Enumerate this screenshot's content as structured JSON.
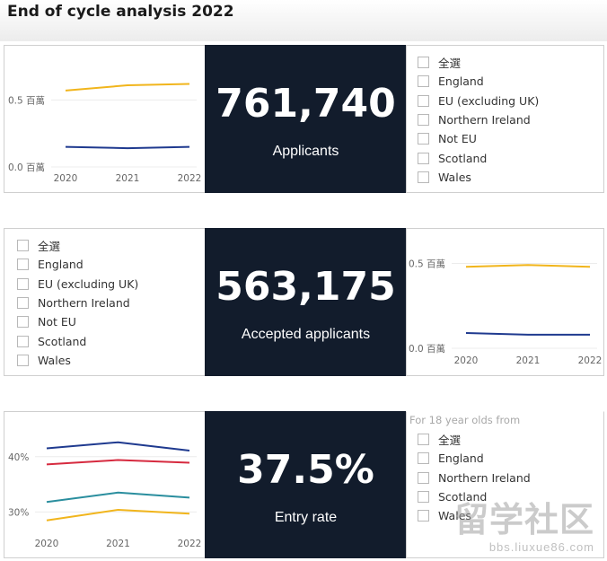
{
  "page": {
    "title": "End of cycle analysis 2022"
  },
  "chart_data": [
    {
      "type": "line",
      "title": "Applicants",
      "x": [
        2020,
        2021,
        2022
      ],
      "series": [
        {
          "name": "upper",
          "color": "#f1b51c",
          "values": [
            0.57,
            0.61,
            0.62
          ]
        },
        {
          "name": "lower",
          "color": "#1f3a8f",
          "values": [
            0.15,
            0.14,
            0.15
          ]
        }
      ],
      "yticks": [
        {
          "value": 0.0,
          "label": "0.0 百萬"
        },
        {
          "value": 0.5,
          "label": "0.5 百萬"
        }
      ],
      "ylim": [
        0,
        0.65
      ]
    },
    {
      "type": "line",
      "title": "Accepted applicants",
      "x": [
        2020,
        2021,
        2022
      ],
      "series": [
        {
          "name": "upper",
          "color": "#f1b51c",
          "values": [
            0.48,
            0.49,
            0.48
          ]
        },
        {
          "name": "lower",
          "color": "#1f3a8f",
          "values": [
            0.09,
            0.08,
            0.08
          ]
        }
      ],
      "yticks": [
        {
          "value": 0.0,
          "label": "0.0 百萬"
        },
        {
          "value": 0.5,
          "label": "0.5 百萬"
        }
      ],
      "ylim": [
        0,
        0.55
      ]
    },
    {
      "type": "line",
      "title": "Entry rate",
      "x": [
        2020,
        2021,
        2022
      ],
      "series": [
        {
          "name": "navy",
          "color": "#1f3a8f",
          "values": [
            41.5,
            42.6,
            41.1
          ]
        },
        {
          "name": "red",
          "color": "#d62a3f",
          "values": [
            38.6,
            39.4,
            38.9
          ]
        },
        {
          "name": "teal",
          "color": "#2a8e9e",
          "values": [
            31.8,
            33.5,
            32.6
          ]
        },
        {
          "name": "yellow",
          "color": "#f1b51c",
          "values": [
            28.5,
            30.4,
            29.7
          ]
        }
      ],
      "yticks": [
        {
          "value": 30,
          "label": "30%"
        },
        {
          "value": 40,
          "label": "40%"
        }
      ],
      "ylim": [
        26.5,
        44.5
      ]
    }
  ],
  "cards": [
    {
      "value": "761,740",
      "label": "Applicants"
    },
    {
      "value": "563,175",
      "label": "Accepted applicants"
    },
    {
      "value": "37.5%",
      "label": "Entry rate"
    }
  ],
  "filters": {
    "applicants": {
      "items": [
        "全選",
        "England",
        "EU (excluding UK)",
        "Northern Ireland",
        "Not EU",
        "Scotland",
        "Wales"
      ]
    },
    "accepted": {
      "items": [
        "全選",
        "England",
        "EU (excluding UK)",
        "Northern Ireland",
        "Not EU",
        "Scotland",
        "Wales"
      ]
    },
    "entry": {
      "note": "For 18 year olds from",
      "items": [
        "全選",
        "England",
        "Northern Ireland",
        "Scotland",
        "Wales"
      ]
    }
  },
  "watermark": {
    "text": "留学社区",
    "url": "bbs.liuxue86.com"
  }
}
